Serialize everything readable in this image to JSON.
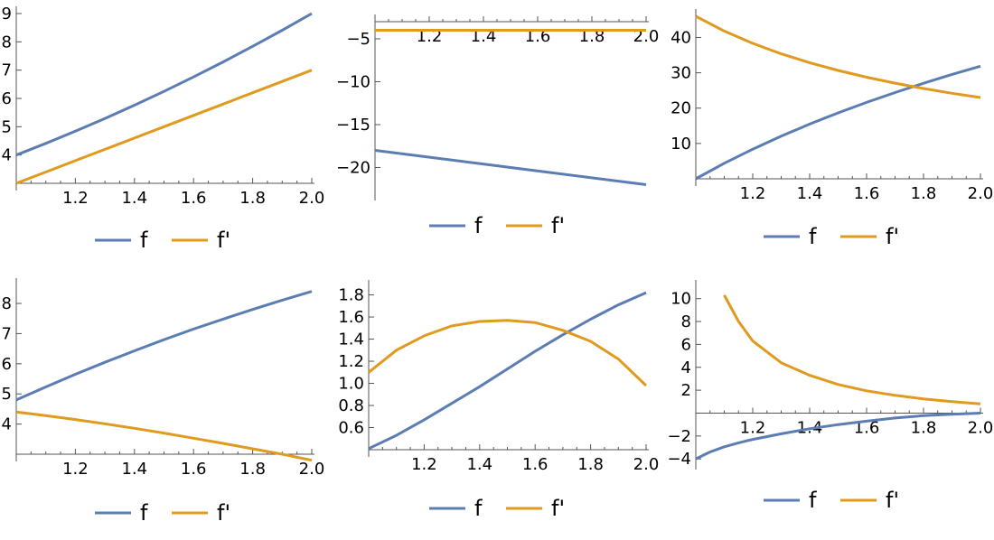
{
  "colors": {
    "f": "#5b7db3",
    "fprime": "#e09a1e",
    "axis": "#555555"
  },
  "chart_data": [
    {
      "type": "line",
      "xlim": [
        1.0,
        2.0
      ],
      "ylim": [
        3.0,
        9.0
      ],
      "xticks": [
        1.2,
        1.4,
        1.6,
        1.8,
        2.0
      ],
      "xtick_labels": [
        "1.2",
        "1.4",
        "1.6",
        "1.8",
        "2.0"
      ],
      "yticks": [
        4,
        5,
        6,
        7,
        8,
        9
      ],
      "ytick_labels": [
        "4",
        "5",
        "6",
        "7",
        "8",
        "9"
      ],
      "x_axis_at_y": 3.0,
      "legend": [
        "f",
        "f'"
      ],
      "series": [
        {
          "name": "f",
          "x": [
            1.0,
            1.1,
            1.2,
            1.3,
            1.4,
            1.5,
            1.6,
            1.7,
            1.8,
            1.9,
            2.0
          ],
          "y": [
            4.0,
            4.41,
            4.84,
            5.29,
            5.76,
            6.25,
            6.76,
            7.29,
            7.84,
            8.41,
            9.0
          ]
        },
        {
          "name": "f'",
          "x": [
            1.0,
            1.1,
            1.2,
            1.3,
            1.4,
            1.5,
            1.6,
            1.7,
            1.8,
            1.9,
            2.0
          ],
          "y": [
            3.0,
            3.4,
            3.8,
            4.2,
            4.6,
            5.0,
            5.4,
            5.8,
            6.2,
            6.6,
            7.0
          ]
        }
      ]
    },
    {
      "type": "line",
      "xlim": [
        1.0,
        2.0
      ],
      "ylim": [
        -23.0,
        -3.0
      ],
      "xticks": [
        1.2,
        1.4,
        1.6,
        1.8,
        2.0
      ],
      "xtick_labels": [
        "1.2",
        "1.4",
        "1.6",
        "1.8",
        "2.0"
      ],
      "yticks": [
        -5,
        -10,
        -15,
        -20
      ],
      "ytick_labels": [
        "−5",
        "−10",
        "−15",
        "−20"
      ],
      "x_axis_at_y": -3.0,
      "legend": [
        "f",
        "f'"
      ],
      "series": [
        {
          "name": "f",
          "x": [
            1.0,
            1.5,
            2.0
          ],
          "y": [
            -18.0,
            -20.0,
            -22.0
          ]
        },
        {
          "name": "f'",
          "x": [
            1.0,
            1.5,
            2.0
          ],
          "y": [
            -4.0,
            -4.0,
            -4.0
          ]
        }
      ]
    },
    {
      "type": "line",
      "xlim": [
        1.0,
        2.0
      ],
      "ylim": [
        0.0,
        46.0
      ],
      "xticks": [
        1.2,
        1.4,
        1.6,
        1.8,
        2.0
      ],
      "xtick_labels": [
        "1.2",
        "1.4",
        "1.6",
        "1.8",
        "2.0"
      ],
      "yticks": [
        10,
        20,
        30,
        40
      ],
      "ytick_labels": [
        "10",
        "20",
        "30",
        "40"
      ],
      "x_axis_at_y": 0.0,
      "legend": [
        "f",
        "f'"
      ],
      "series": [
        {
          "name": "f",
          "x": [
            1.0,
            1.1,
            1.2,
            1.3,
            1.4,
            1.5,
            1.6,
            1.7,
            1.8,
            1.9,
            2.0
          ],
          "y": [
            0.0,
            4.39,
            8.39,
            12.07,
            15.48,
            18.65,
            21.62,
            24.41,
            27.04,
            29.53,
            31.88
          ]
        },
        {
          "name": "f'",
          "x": [
            1.0,
            1.1,
            1.2,
            1.3,
            1.4,
            1.5,
            1.6,
            1.7,
            1.8,
            1.9,
            2.0
          ],
          "y": [
            46.0,
            41.82,
            38.33,
            35.38,
            32.86,
            30.67,
            28.75,
            27.06,
            25.56,
            24.21,
            23.0
          ]
        }
      ]
    },
    {
      "type": "line",
      "xlim": [
        1.0,
        2.0
      ],
      "ylim": [
        3.0,
        8.6
      ],
      "xticks": [
        1.2,
        1.4,
        1.6,
        1.8,
        2.0
      ],
      "xtick_labels": [
        "1.2",
        "1.4",
        "1.6",
        "1.8",
        "2.0"
      ],
      "yticks": [
        4,
        5,
        6,
        7,
        8
      ],
      "ytick_labels": [
        "4",
        "5",
        "6",
        "7",
        "8"
      ],
      "x_axis_at_y": 3.0,
      "legend": [
        "f",
        "f'"
      ],
      "series": [
        {
          "name": "f",
          "x": [
            1.0,
            1.1,
            1.2,
            1.3,
            1.4,
            1.5,
            1.6,
            1.7,
            1.8,
            1.9,
            2.0
          ],
          "y": [
            4.8,
            5.23,
            5.65,
            6.05,
            6.43,
            6.8,
            7.15,
            7.48,
            7.8,
            8.11,
            8.4
          ]
        },
        {
          "name": "f'",
          "x": [
            1.0,
            1.1,
            1.2,
            1.3,
            1.4,
            1.5,
            1.6,
            1.7,
            1.8,
            1.9,
            2.0
          ],
          "y": [
            4.4,
            4.28,
            4.15,
            4.01,
            3.86,
            3.7,
            3.53,
            3.36,
            3.18,
            3.0,
            2.8
          ]
        }
      ]
    },
    {
      "type": "line",
      "xlim": [
        1.0,
        2.0
      ],
      "ylim": [
        0.4,
        1.87
      ],
      "xticks": [
        1.2,
        1.4,
        1.6,
        1.8,
        2.0
      ],
      "xtick_labels": [
        "1.2",
        "1.4",
        "1.6",
        "1.8",
        "2.0"
      ],
      "yticks": [
        0.6,
        0.8,
        1.0,
        1.2,
        1.4,
        1.6,
        1.8
      ],
      "ytick_labels": [
        "0.6",
        "0.8",
        "1.0",
        "1.2",
        "1.4",
        "1.6",
        "1.8"
      ],
      "x_axis_at_y": 0.4,
      "legend": [
        "f",
        "f'"
      ],
      "series": [
        {
          "name": "f",
          "x": [
            1.0,
            1.1,
            1.2,
            1.3,
            1.4,
            1.5,
            1.6,
            1.7,
            1.8,
            1.9,
            2.0
          ],
          "y": [
            0.41,
            0.53,
            0.67,
            0.82,
            0.97,
            1.13,
            1.29,
            1.44,
            1.58,
            1.71,
            1.82
          ]
        },
        {
          "name": "f'",
          "x": [
            1.0,
            1.1,
            1.2,
            1.3,
            1.4,
            1.5,
            1.6,
            1.7,
            1.8,
            1.9,
            2.0
          ],
          "y": [
            1.1,
            1.3,
            1.43,
            1.52,
            1.56,
            1.57,
            1.55,
            1.48,
            1.38,
            1.22,
            0.98
          ]
        }
      ]
    },
    {
      "type": "line",
      "xlim": [
        1.0,
        2.0
      ],
      "ylim": [
        -4.3,
        11.0
      ],
      "xticks": [
        1.2,
        1.4,
        1.6,
        1.8,
        2.0
      ],
      "xtick_labels": [
        "1.2",
        "1.4",
        "1.6",
        "1.8",
        "2.0"
      ],
      "yticks": [
        -4,
        -2,
        2,
        4,
        6,
        8,
        10
      ],
      "ytick_labels": [
        "−4",
        "−2",
        "2",
        "4",
        "6",
        "8",
        "10"
      ],
      "x_axis_at_y": 0.0,
      "legend": [
        "f",
        "f'"
      ],
      "series": [
        {
          "name": "f",
          "x": [
            1.0,
            1.05,
            1.1,
            1.15,
            1.2,
            1.3,
            1.4,
            1.5,
            1.6,
            1.7,
            1.8,
            1.9,
            2.0
          ],
          "y": [
            -4.0,
            -3.39,
            -2.94,
            -2.6,
            -2.3,
            -1.81,
            -1.37,
            -1.0,
            -0.7,
            -0.43,
            -0.22,
            -0.1,
            0.0
          ]
        },
        {
          "name": "f'",
          "x": [
            1.1,
            1.15,
            1.2,
            1.3,
            1.4,
            1.5,
            1.6,
            1.7,
            1.8,
            1.9,
            2.0
          ],
          "y": [
            10.3,
            8.0,
            6.3,
            4.4,
            3.3,
            2.5,
            1.95,
            1.55,
            1.24,
            1.0,
            0.8
          ]
        }
      ]
    }
  ]
}
